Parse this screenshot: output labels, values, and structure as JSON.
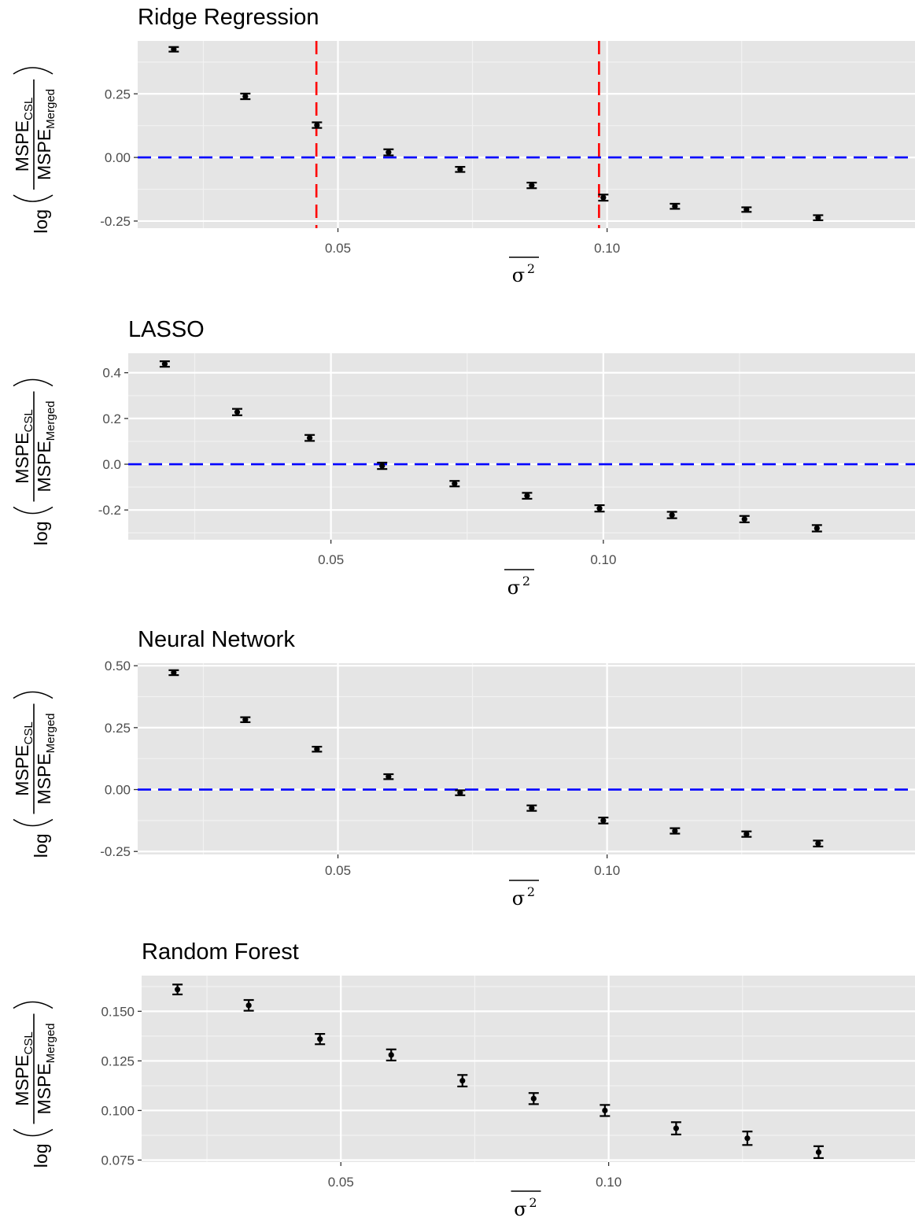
{
  "chart_data": [
    {
      "type": "scatter",
      "title": "Ridge Regression",
      "xlabel": "σ²",
      "ylabel": "log(MSPE_CSL / MSPE_Merged)",
      "xlim": [
        0.0128,
        0.1572
      ],
      "ylim": [
        -0.278,
        0.458
      ],
      "xticks": [
        0.05,
        0.1
      ],
      "xtick_labels": [
        "0.05",
        "0.10"
      ],
      "yticks": [
        -0.25,
        0.0,
        0.25
      ],
      "ytick_labels": [
        "-0.25",
        "0.00",
        "0.25"
      ],
      "hline": {
        "y": 0.0,
        "color": "#0000ff",
        "style": "dashed"
      },
      "vlines": [
        {
          "x": 0.046,
          "color": "#ff0000",
          "style": "dashed"
        },
        {
          "x": 0.0985,
          "color": "#ff0000",
          "style": "dashed"
        }
      ],
      "series": [
        {
          "x": [
            0.0195,
            0.0328,
            0.0461,
            0.0594,
            0.0727,
            0.086,
            0.0993,
            0.1126,
            0.1259,
            0.1392
          ],
          "y": [
            0.425,
            0.24,
            0.127,
            0.02,
            -0.047,
            -0.11,
            -0.158,
            -0.192,
            -0.205,
            -0.237
          ],
          "err": [
            0.009,
            0.011,
            0.011,
            0.012,
            0.01,
            0.011,
            0.012,
            0.01,
            0.009,
            0.01
          ]
        }
      ]
    },
    {
      "type": "scatter",
      "title": "LASSO",
      "xlabel": "σ²",
      "ylabel": "log(MSPE_CSL / MSPE_Merged)",
      "xlim": [
        0.0128,
        0.1572
      ],
      "ylim": [
        -0.33,
        0.485
      ],
      "xticks": [
        0.05,
        0.1
      ],
      "xtick_labels": [
        "0.05",
        "0.10"
      ],
      "yticks": [
        -0.2,
        0.0,
        0.2,
        0.4
      ],
      "ytick_labels": [
        "-0.2",
        "0.0",
        "0.2",
        "0.4"
      ],
      "hline": {
        "y": 0.0,
        "color": "#0000ff",
        "style": "dashed"
      },
      "vlines": [],
      "series": [
        {
          "x": [
            0.0195,
            0.0328,
            0.0461,
            0.0594,
            0.0727,
            0.086,
            0.0993,
            0.1126,
            0.1259,
            0.1392
          ],
          "y": [
            0.438,
            0.228,
            0.115,
            -0.007,
            -0.085,
            -0.138,
            -0.193,
            -0.222,
            -0.24,
            -0.28
          ],
          "err": [
            0.012,
            0.014,
            0.013,
            0.014,
            0.012,
            0.013,
            0.014,
            0.014,
            0.014,
            0.014
          ]
        }
      ]
    },
    {
      "type": "scatter",
      "title": "Neural Network",
      "xlabel": "σ²",
      "ylabel": "log(MSPE_CSL / MSPE_Merged)",
      "xlim": [
        0.0128,
        0.1572
      ],
      "ylim": [
        -0.262,
        0.51
      ],
      "xticks": [
        0.05,
        0.1
      ],
      "xtick_labels": [
        "0.05",
        "0.10"
      ],
      "yticks": [
        -0.25,
        0.0,
        0.25,
        0.5
      ],
      "ytick_labels": [
        "-0.25",
        "0.00",
        "0.25",
        "0.50"
      ],
      "hline": {
        "y": 0.0,
        "color": "#0000ff",
        "style": "dashed"
      },
      "vlines": [],
      "series": [
        {
          "x": [
            0.0195,
            0.0328,
            0.0461,
            0.0594,
            0.0727,
            0.086,
            0.0993,
            0.1126,
            0.1259,
            0.1392
          ],
          "y": [
            0.472,
            0.282,
            0.163,
            0.052,
            -0.013,
            -0.075,
            -0.125,
            -0.167,
            -0.18,
            -0.218
          ],
          "err": [
            0.01,
            0.01,
            0.01,
            0.01,
            0.01,
            0.011,
            0.012,
            0.011,
            0.011,
            0.012
          ]
        }
      ]
    },
    {
      "type": "scatter",
      "title": "Random Forest",
      "xlabel": "σ²",
      "ylabel": "log(MSPE_CSL / MSPE_Merged)",
      "xlim": [
        0.0128,
        0.1572
      ],
      "ylim": [
        0.074,
        0.168
      ],
      "xticks": [
        0.05,
        0.1
      ],
      "xtick_labels": [
        "0.05",
        "0.10"
      ],
      "yticks": [
        0.075,
        0.1,
        0.125,
        0.15
      ],
      "ytick_labels": [
        "0.075",
        "0.100",
        "0.125",
        "0.150"
      ],
      "hline": null,
      "vlines": [],
      "series": [
        {
          "x": [
            0.0195,
            0.0328,
            0.0461,
            0.0594,
            0.0727,
            0.086,
            0.0993,
            0.1126,
            0.1259,
            0.1392
          ],
          "y": [
            0.161,
            0.153,
            0.136,
            0.128,
            0.115,
            0.106,
            0.1,
            0.091,
            0.086,
            0.079
          ],
          "err": [
            0.0025,
            0.0027,
            0.0026,
            0.0028,
            0.0029,
            0.0028,
            0.0028,
            0.0031,
            0.0034,
            0.003
          ]
        }
      ]
    }
  ]
}
